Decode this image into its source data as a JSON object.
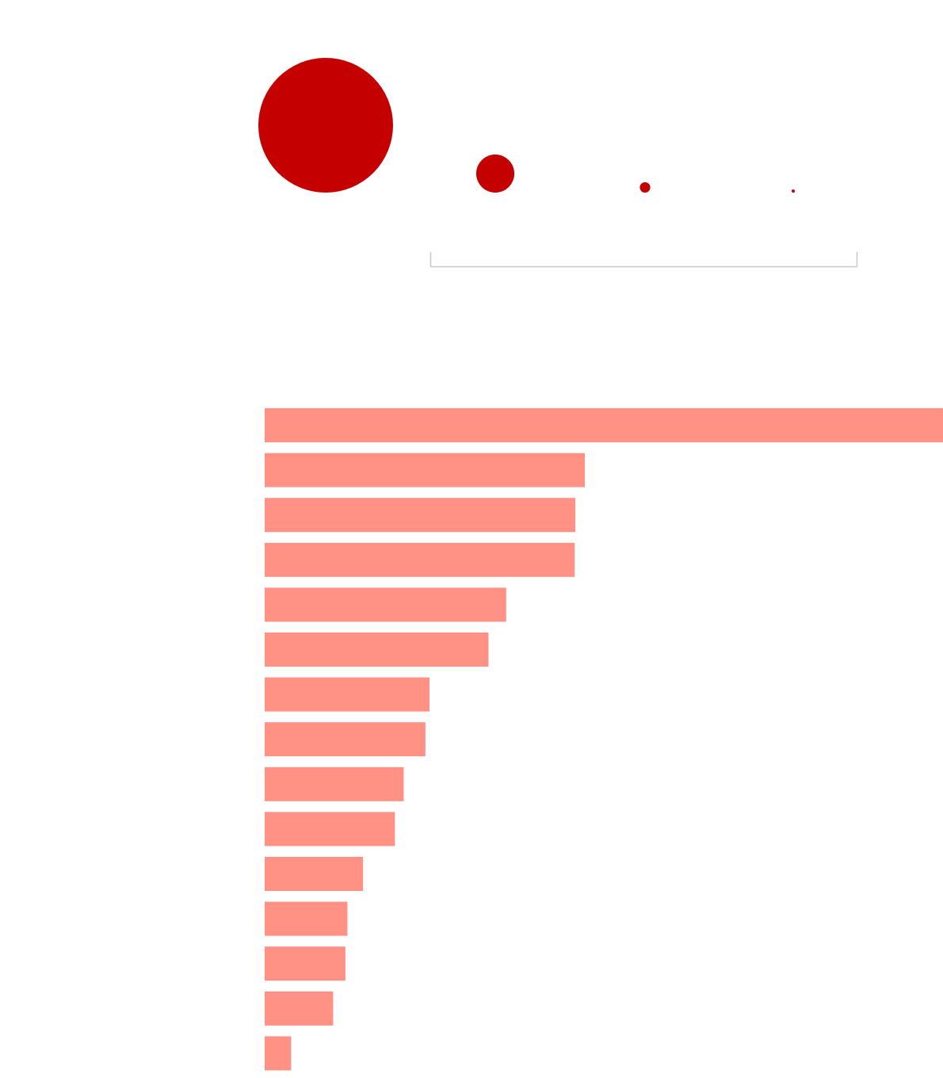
{
  "chart_data": [
    {
      "type": "scatter",
      "encoding": "bubble-size",
      "values": [
        100,
        8,
        0.6,
        0.05
      ],
      "color": "#c40000",
      "bracket_color": "#c8c8c8"
    },
    {
      "type": "bar",
      "orientation": "horizontal",
      "values": [
        100,
        47.2,
        45.8,
        45.7,
        35.6,
        33.0,
        24.3,
        23.7,
        20.5,
        19.2,
        14.5,
        12.2,
        11.9,
        10.1,
        3.9
      ],
      "xlim": [
        0,
        100
      ],
      "color": "#ff9185"
    }
  ]
}
